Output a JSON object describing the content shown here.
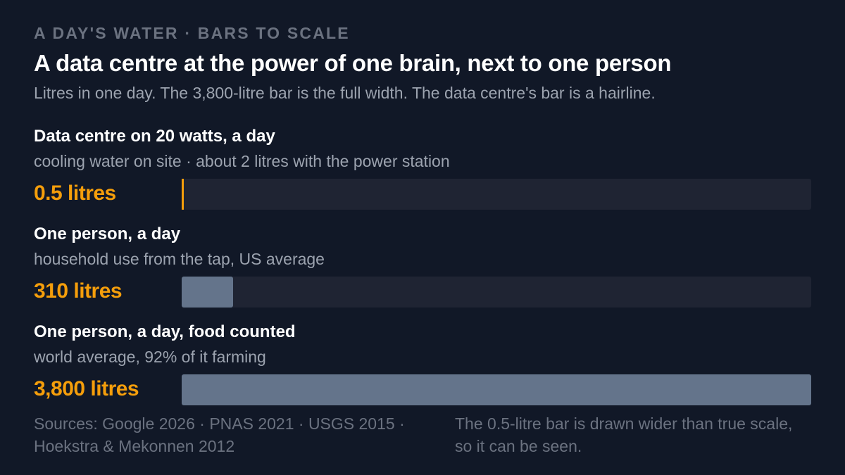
{
  "kicker": "A DAY'S WATER · BARS TO SCALE",
  "title": "A data centre at the power of one brain, next to one person",
  "subtitle": "Litres in one day. The 3,800-litre bar is the full width. The data centre's bar is a hairline.",
  "chart_data": {
    "type": "bar",
    "orientation": "horizontal",
    "unit": "litres",
    "max": 3800,
    "rows": [
      {
        "label": "Data centre on 20 watts, a day",
        "sublabel": "cooling water on site · about 2 litres with the power station",
        "value": 0.5,
        "value_label": "0.5 litres",
        "color": "#f59e0b",
        "style": "hairline"
      },
      {
        "label": "One person, a day",
        "sublabel": "household use from the tap, US average",
        "value": 310,
        "value_label": "310 litres",
        "color": "#64748b",
        "style": "bar"
      },
      {
        "label": "One person, a day, food counted",
        "sublabel": "world average, 92% of it farming",
        "value": 3800,
        "value_label": "3,800 litres",
        "color": "#64748b",
        "style": "bar"
      }
    ]
  },
  "footer": {
    "sources": "Sources: Google 2026 · PNAS 2021 · USGS 2015 · Hoekstra & Mekonnen 2012",
    "note": "The 0.5-litre bar is drawn wider than true scale, so it can be seen."
  },
  "colors": {
    "background": "#111827",
    "accent": "#f59e0b",
    "bar": "#64748b",
    "track": "#1f2433"
  }
}
